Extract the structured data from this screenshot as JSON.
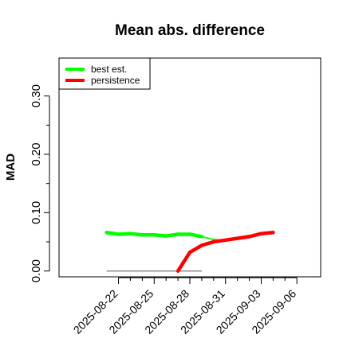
{
  "chart_data": {
    "type": "line",
    "title": "Mean abs. difference",
    "ylabel": "MAD",
    "xlabel": "",
    "x_dates": [
      "2025-08-21",
      "2025-08-22",
      "2025-08-23",
      "2025-08-24",
      "2025-08-25",
      "2025-08-26",
      "2025-08-27",
      "2025-08-28",
      "2025-08-29",
      "2025-08-30",
      "2025-08-31",
      "2025-09-01",
      "2025-09-02",
      "2025-09-03",
      "2025-09-04"
    ],
    "series": [
      {
        "name": "best est.",
        "color": "#00ff00",
        "values": [
          0.066,
          0.063,
          0.064,
          0.062,
          0.062,
          0.06,
          0.063,
          0.063,
          0.059,
          0.054,
          0.052,
          null,
          null,
          null,
          null
        ]
      },
      {
        "name": "persistence",
        "color": "#ff0000",
        "values": [
          null,
          null,
          null,
          null,
          null,
          null,
          0.0,
          0.032,
          0.044,
          0.05,
          0.053,
          0.056,
          0.059,
          0.064,
          0.066
        ]
      }
    ],
    "reference_line": {
      "y": 0.0,
      "x_start": "2025-08-21",
      "x_end": "2025-08-29",
      "color": "#808080"
    },
    "yticks": [
      0.0,
      0.1,
      0.2,
      0.3
    ],
    "ytick_labels": [
      "0.00",
      "0.10",
      "0.20",
      "0.30"
    ],
    "xticks": [
      "2025-08-22",
      "2025-08-25",
      "2025-08-28",
      "2025-08-31",
      "2025-09-03",
      "2025-09-06"
    ],
    "ylim": [
      -0.01,
      0.365
    ],
    "xlim": [
      "2025-08-17",
      "2025-09-08"
    ],
    "grid": false,
    "legend_position": "top-left"
  }
}
